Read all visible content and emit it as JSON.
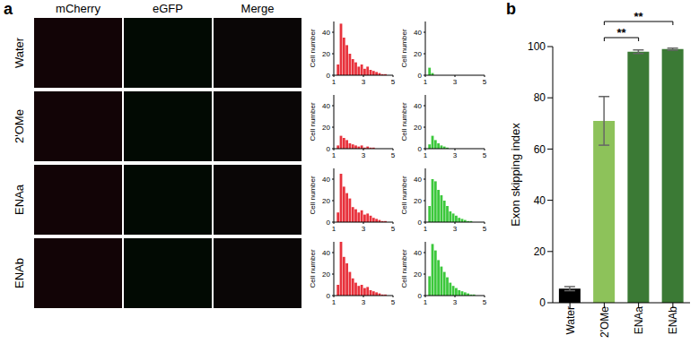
{
  "figure": {
    "panel_labels": [
      "a",
      "b"
    ],
    "image_columns": [
      "mCherry",
      "eGFP",
      "Merge"
    ],
    "image_rows": [
      "Water",
      "2'OMe",
      "ENAa",
      "ENAb"
    ]
  },
  "chart_data": [
    {
      "type": "histogram",
      "y_label": "Cell number",
      "color": "#e8323c",
      "bins": [
        1.0,
        1.2,
        1.4,
        1.6,
        1.8,
        2.0,
        2.2,
        2.4,
        2.6,
        2.8,
        3.0,
        3.2,
        3.4,
        3.6,
        3.8,
        4.0,
        4.2,
        4.4,
        4.6,
        4.8,
        5.0
      ],
      "counts": [
        0,
        10,
        48,
        35,
        28,
        20,
        15,
        12,
        8,
        10,
        6,
        8,
        5,
        4,
        3,
        2,
        1,
        1,
        0,
        0
      ],
      "xlim": [
        1,
        5
      ],
      "xticks": [
        1,
        3,
        5
      ],
      "ylim": [
        0,
        50
      ],
      "yticks": [
        0,
        20,
        40
      ]
    },
    {
      "type": "histogram",
      "y_label": "Cell number",
      "color": "#3cc83c",
      "bins": [
        1.0,
        1.2,
        1.4,
        1.6,
        1.8,
        2.0,
        2.2,
        2.4,
        2.6,
        2.8,
        3.0,
        3.2,
        3.4,
        3.6,
        3.8,
        4.0,
        4.2,
        4.4,
        4.6,
        4.8,
        5.0
      ],
      "counts": [
        0,
        7,
        2,
        0,
        0,
        0,
        0,
        0,
        0,
        0,
        0,
        0,
        0,
        0,
        0,
        0,
        0,
        0,
        0,
        0
      ],
      "xlim": [
        1,
        5
      ],
      "xticks": [
        1,
        3,
        5
      ],
      "ylim": [
        0,
        50
      ],
      "yticks": [
        0,
        20,
        40
      ]
    },
    {
      "type": "histogram",
      "y_label": "Cell number",
      "color": "#e8323c",
      "bins": [
        1.0,
        1.2,
        1.4,
        1.6,
        1.8,
        2.0,
        2.2,
        2.4,
        2.6,
        2.8,
        3.0,
        3.2,
        3.4,
        3.6,
        3.8,
        4.0,
        4.2,
        4.4,
        4.6,
        4.8,
        5.0
      ],
      "counts": [
        0,
        3,
        12,
        10,
        8,
        5,
        4,
        3,
        2,
        3,
        1,
        2,
        1,
        1,
        0,
        0,
        0,
        0,
        0,
        0
      ],
      "xlim": [
        1,
        5
      ],
      "xticks": [
        1,
        3,
        5
      ],
      "ylim": [
        0,
        50
      ],
      "yticks": [
        0,
        20,
        40
      ]
    },
    {
      "type": "histogram",
      "y_label": "Cell number",
      "color": "#3cc83c",
      "bins": [
        1.0,
        1.2,
        1.4,
        1.6,
        1.8,
        2.0,
        2.2,
        2.4,
        2.6,
        2.8,
        3.0,
        3.2,
        3.4,
        3.6,
        3.8,
        4.0,
        4.2,
        4.4,
        4.6,
        4.8,
        5.0
      ],
      "counts": [
        0,
        4,
        12,
        8,
        5,
        3,
        2,
        1,
        0,
        0,
        0,
        0,
        0,
        0,
        0,
        0,
        0,
        0,
        0,
        0
      ],
      "xlim": [
        1,
        5
      ],
      "xticks": [
        1,
        3,
        5
      ],
      "ylim": [
        0,
        50
      ],
      "yticks": [
        0,
        20,
        40
      ]
    },
    {
      "type": "histogram",
      "y_label": "Cell number",
      "color": "#e8323c",
      "bins": [
        1.0,
        1.2,
        1.4,
        1.6,
        1.8,
        2.0,
        2.2,
        2.4,
        2.6,
        2.8,
        3.0,
        3.2,
        3.4,
        3.6,
        3.8,
        4.0,
        4.2,
        4.4,
        4.6,
        4.8,
        5.0
      ],
      "counts": [
        0,
        9,
        45,
        33,
        27,
        22,
        14,
        12,
        9,
        11,
        7,
        8,
        6,
        4,
        3,
        2,
        1,
        1,
        0,
        0
      ],
      "xlim": [
        1,
        5
      ],
      "xticks": [
        1,
        3,
        5
      ],
      "ylim": [
        0,
        50
      ],
      "yticks": [
        0,
        20,
        40
      ]
    },
    {
      "type": "histogram",
      "y_label": "Cell number",
      "color": "#3cc83c",
      "bins": [
        1.0,
        1.2,
        1.4,
        1.6,
        1.8,
        2.0,
        2.2,
        2.4,
        2.6,
        2.8,
        3.0,
        3.2,
        3.4,
        3.6,
        3.8,
        4.0,
        4.2,
        4.4,
        4.6,
        4.8,
        5.0
      ],
      "counts": [
        0,
        15,
        40,
        38,
        30,
        25,
        20,
        15,
        10,
        8,
        6,
        4,
        3,
        2,
        1,
        1,
        0,
        0,
        0,
        0
      ],
      "xlim": [
        1,
        5
      ],
      "xticks": [
        1,
        3,
        5
      ],
      "ylim": [
        0,
        50
      ],
      "yticks": [
        0,
        20,
        40
      ]
    },
    {
      "type": "histogram",
      "y_label": "Cell number",
      "color": "#e8323c",
      "bins": [
        1.0,
        1.2,
        1.4,
        1.6,
        1.8,
        2.0,
        2.2,
        2.4,
        2.6,
        2.8,
        3.0,
        3.2,
        3.4,
        3.6,
        3.8,
        4.0,
        4.2,
        4.4,
        4.6,
        4.8,
        5.0
      ],
      "counts": [
        0,
        10,
        50,
        36,
        30,
        22,
        16,
        12,
        9,
        10,
        7,
        8,
        5,
        4,
        3,
        2,
        1,
        1,
        0,
        0
      ],
      "xlim": [
        1,
        5
      ],
      "xticks": [
        1,
        3,
        5
      ],
      "ylim": [
        0,
        50
      ],
      "yticks": [
        0,
        20,
        40
      ]
    },
    {
      "type": "histogram",
      "y_label": "Cell number",
      "color": "#3cc83c",
      "bins": [
        1.0,
        1.2,
        1.4,
        1.6,
        1.8,
        2.0,
        2.2,
        2.4,
        2.6,
        2.8,
        3.0,
        3.2,
        3.4,
        3.6,
        3.8,
        4.0,
        4.2,
        4.4,
        4.6,
        4.8,
        5.0
      ],
      "counts": [
        0,
        18,
        48,
        42,
        33,
        27,
        22,
        17,
        12,
        9,
        7,
        5,
        4,
        3,
        2,
        1,
        1,
        0,
        0,
        0
      ],
      "xlim": [
        1,
        5
      ],
      "xticks": [
        1,
        3,
        5
      ],
      "ylim": [
        0,
        50
      ],
      "yticks": [
        0,
        20,
        40
      ]
    },
    {
      "type": "bar",
      "y_label": "Exon skipping index",
      "categories": [
        "Water",
        "2'OMe",
        "ENAa",
        "ENAb"
      ],
      "values": [
        5.5,
        71,
        98,
        99
      ],
      "errors": [
        0.8,
        9.5,
        0.7,
        0.4
      ],
      "colors": [
        "#000000",
        "#8dc25a",
        "#3b7a35",
        "#3b7a35"
      ],
      "ylim": [
        0,
        100
      ],
      "yticks": [
        0,
        20,
        40,
        60,
        80,
        100
      ],
      "annotations": [
        {
          "text": "**",
          "from": "2'OMe",
          "to": "ENAa"
        },
        {
          "text": "**",
          "from": "2'OMe",
          "to": "ENAb"
        }
      ]
    }
  ]
}
